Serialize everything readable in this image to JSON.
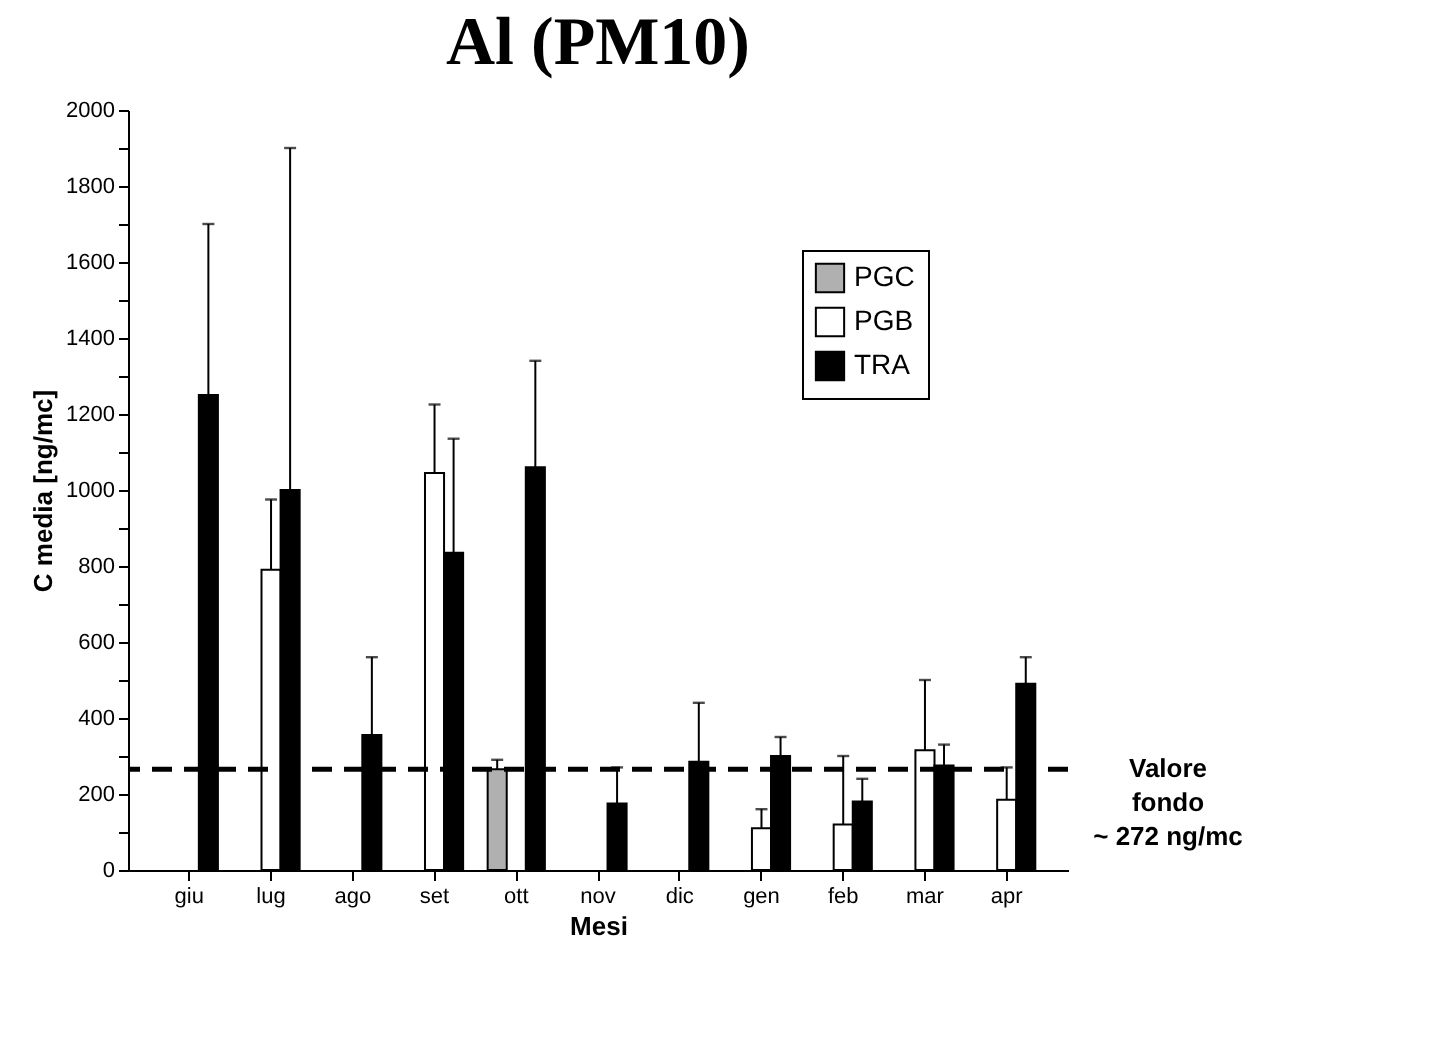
{
  "chart_data": {
    "type": "bar",
    "title": "Al (PM10)",
    "xlabel": "Mesi",
    "ylabel": "C media [ng/mc]",
    "categories": [
      "giu",
      "lug",
      "ago",
      "set",
      "ott",
      "nov",
      "dic",
      "gen",
      "feb",
      "mar",
      "apr"
    ],
    "series": [
      {
        "name": "PGC",
        "color": "#b0b0b0",
        "values": [
          null,
          null,
          null,
          null,
          265,
          null,
          null,
          null,
          null,
          null,
          null
        ],
        "errors": [
          null,
          null,
          null,
          null,
          [
            265,
            290
          ],
          null,
          null,
          null,
          null,
          null,
          null
        ]
      },
      {
        "name": "PGB",
        "color": "#ffffff",
        "values": [
          null,
          790,
          null,
          1045,
          null,
          null,
          null,
          110,
          120,
          315,
          185
        ],
        "errors": [
          null,
          [
            790,
            975
          ],
          null,
          [
            1045,
            1225
          ],
          null,
          null,
          null,
          [
            110,
            160
          ],
          [
            120,
            300
          ],
          [
            315,
            500
          ],
          [
            185,
            270
          ]
        ]
      },
      {
        "name": "TRA",
        "color": "#000000",
        "values": [
          1250,
          1000,
          355,
          835,
          1060,
          175,
          285,
          300,
          180,
          275,
          490
        ],
        "errors": [
          [
            1250,
            1700
          ],
          [
            1000,
            1900
          ],
          [
            355,
            560
          ],
          [
            835,
            1135
          ],
          [
            1060,
            1340
          ],
          [
            175,
            270
          ],
          [
            285,
            440
          ],
          [
            300,
            350
          ],
          [
            180,
            240
          ],
          [
            275,
            330
          ],
          [
            490,
            560
          ]
        ]
      }
    ],
    "ylim": [
      0,
      2000
    ],
    "yticks": [
      0,
      {
        "value": 100,
        "label": null
      },
      200,
      {
        "value": 300,
        "label": null
      },
      400,
      {
        "value": 500,
        "label": null
      },
      600,
      {
        "value": 700,
        "label": null
      },
      800,
      {
        "value": 900,
        "label": null
      },
      1000,
      {
        "value": 1100,
        "label": null
      },
      1200,
      {
        "value": 1300,
        "label": null
      },
      1400,
      {
        "value": 1500,
        "label": null
      },
      1600,
      {
        "value": 1700,
        "label": null
      },
      1800,
      {
        "value": 1900,
        "label": null
      },
      2000
    ],
    "ref_lines": [
      {
        "axis": "y",
        "value": 265,
        "label": "Valore\nfondo\n~ 272 ng/mc",
        "color": "#000000",
        "line_style": "dashed"
      }
    ],
    "legend": "top right",
    "grid": false
  }
}
